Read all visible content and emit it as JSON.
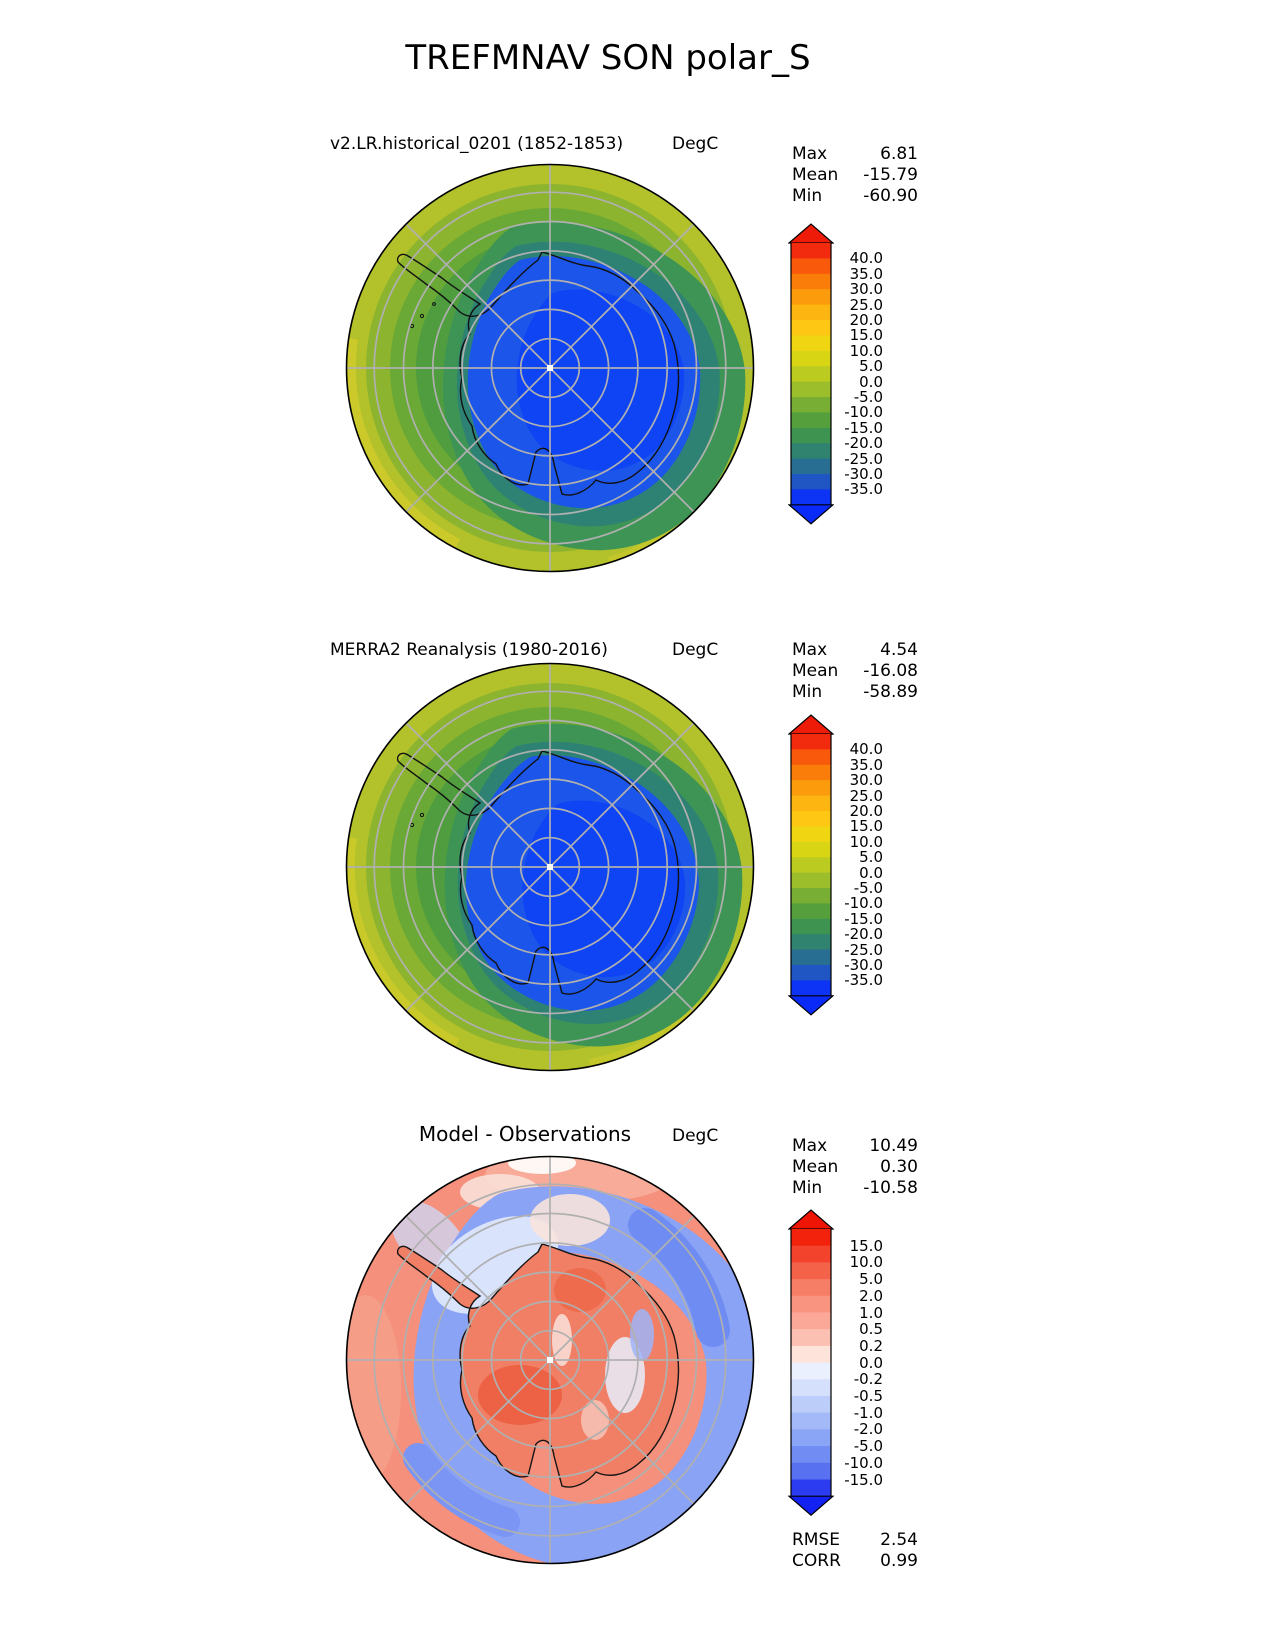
{
  "page_title": "TREFMNAV SON polar_S",
  "panels": [
    {
      "subtitle": "v2.LR.historical_0201 (1852-1853)",
      "units": "DegC",
      "stats": {
        "rows": [
          {
            "label": "Max",
            "value": "6.81"
          },
          {
            "label": "Mean",
            "value": "-15.79"
          },
          {
            "label": "Min",
            "value": "-60.90"
          }
        ]
      },
      "colorbar": {
        "ticks": [
          "40.0",
          "35.0",
          "30.0",
          "25.0",
          "20.0",
          "15.0",
          "10.0",
          "5.0",
          "0.0",
          "-5.0",
          "-10.0",
          "-15.0",
          "-20.0",
          "-25.0",
          "-30.0",
          "-35.0"
        ],
        "arrow_top": "#ed1b07",
        "arrow_bottom": "#0a2af8",
        "segments": [
          "#f22b0e",
          "#f8590b",
          "#fb7d09",
          "#fc9c0d",
          "#fdb512",
          "#fdc713",
          "#f0d512",
          "#d8d614",
          "#bccb20",
          "#9cbe2b",
          "#79ae34",
          "#55a03c",
          "#3d934f",
          "#30836f",
          "#286d92",
          "#2056c4",
          "#0d33f5"
        ]
      }
    },
    {
      "subtitle": "MERRA2 Reanalysis (1980-2016)",
      "units": "DegC",
      "stats": {
        "rows": [
          {
            "label": "Max",
            "value": "4.54"
          },
          {
            "label": "Mean",
            "value": "-16.08"
          },
          {
            "label": "Min",
            "value": "-58.89"
          }
        ]
      },
      "colorbar": {
        "ticks": [
          "40.0",
          "35.0",
          "30.0",
          "25.0",
          "20.0",
          "15.0",
          "10.0",
          "5.0",
          "0.0",
          "-5.0",
          "-10.0",
          "-15.0",
          "-20.0",
          "-25.0",
          "-30.0",
          "-35.0"
        ],
        "arrow_top": "#ed1b07",
        "arrow_bottom": "#0a2af8",
        "segments": [
          "#f22b0e",
          "#f8590b",
          "#fb7d09",
          "#fc9c0d",
          "#fdb512",
          "#fdc713",
          "#f0d512",
          "#d8d614",
          "#bccb20",
          "#9cbe2b",
          "#79ae34",
          "#55a03c",
          "#3d934f",
          "#30836f",
          "#286d92",
          "#2056c4",
          "#0d33f5"
        ]
      }
    },
    {
      "subtitle": "Model - Observations",
      "units": "DegC",
      "stats": {
        "rows": [
          {
            "label": "Max",
            "value": "10.49"
          },
          {
            "label": "Mean",
            "value": "0.30"
          },
          {
            "label": "Min",
            "value": "-10.58"
          }
        ]
      },
      "colorbar": {
        "ticks": [
          "15.0",
          "10.0",
          "5.0",
          "2.0",
          "1.0",
          "0.5",
          "0.2",
          "0.0",
          "-0.2",
          "-0.5",
          "-1.0",
          "-2.0",
          "-5.0",
          "-10.0",
          "-15.0"
        ],
        "arrow_top": "#ef1505",
        "arrow_bottom": "#1322f2",
        "segments": [
          "#f2220c",
          "#f4432d",
          "#f5624a",
          "#f77e66",
          "#f99481",
          "#fba899",
          "#fcc0b2",
          "#fee3db",
          "#eaf0fe",
          "#d4e0fc",
          "#bccdfa",
          "#a3b9f8",
          "#8aa4f6",
          "#718df3",
          "#5871f0",
          "#2c3cf0"
        ]
      }
    }
  ],
  "footer": {
    "rows": [
      {
        "label": "RMSE",
        "value": "2.54"
      },
      {
        "label": "CORR",
        "value": "0.99"
      }
    ]
  },
  "chart_data": [
    {
      "type": "heatmap",
      "title": "v2.LR.historical_0201 (1852-1853)",
      "variable": "TREFMNAV",
      "season": "SON",
      "region": "polar_S",
      "units": "DegC",
      "stats": {
        "max": 6.81,
        "mean": -15.79,
        "min": -60.9
      },
      "contour_levels": [
        -35,
        -30,
        -25,
        -20,
        -15,
        -10,
        -5,
        0,
        5,
        10,
        15,
        20,
        25,
        30,
        35,
        40
      ],
      "colorbar_extend": "both",
      "legend_position": "right"
    },
    {
      "type": "heatmap",
      "title": "MERRA2 Reanalysis (1980-2016)",
      "variable": "TREFMNAV",
      "season": "SON",
      "region": "polar_S",
      "units": "DegC",
      "stats": {
        "max": 4.54,
        "mean": -16.08,
        "min": -58.89
      },
      "contour_levels": [
        -35,
        -30,
        -25,
        -20,
        -15,
        -10,
        -5,
        0,
        5,
        10,
        15,
        20,
        25,
        30,
        35,
        40
      ],
      "colorbar_extend": "both",
      "legend_position": "right"
    },
    {
      "type": "heatmap",
      "title": "Model - Observations",
      "variable": "TREFMNAV",
      "season": "SON",
      "region": "polar_S",
      "units": "DegC",
      "stats": {
        "max": 10.49,
        "mean": 0.3,
        "min": -10.58,
        "rmse": 2.54,
        "corr": 0.99
      },
      "contour_levels": [
        -15,
        -10,
        -5,
        -2,
        -1,
        -0.5,
        -0.2,
        0,
        0.2,
        0.5,
        1,
        2,
        5,
        10,
        15
      ],
      "colorbar_extend": "both",
      "legend_position": "right"
    }
  ]
}
